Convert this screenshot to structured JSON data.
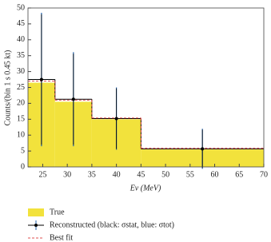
{
  "chart_data": {
    "type": "histogram",
    "xlabel": "Eν (MeV)",
    "ylabel": "Counts/(bin 1 s 0.45 kt)",
    "xlim": [
      22,
      70
    ],
    "ylim": [
      0,
      50
    ],
    "xticks": [
      25,
      30,
      35,
      40,
      45,
      50,
      55,
      60,
      65,
      70
    ],
    "yticks": [
      0,
      5,
      10,
      15,
      20,
      25,
      30,
      35,
      40,
      45,
      50
    ],
    "bins": [
      22,
      27.5,
      35,
      45,
      70
    ],
    "series": [
      {
        "name": "True",
        "color": "#f2e23c",
        "values": [
          26.5,
          20.5,
          15,
          5.5
        ]
      },
      {
        "name": "Reconstructed (black: σstat, blue: σtot)",
        "color": "#000000",
        "error_color": "#1f5fa8",
        "values": [
          27.5,
          21.3,
          15.2,
          5.7
        ],
        "stat_errors": [
          20.5,
          14.3,
          9.5,
          6
        ],
        "tot_errors": [
          21,
          14.8,
          9.8,
          6.3
        ]
      },
      {
        "name": "Best fit",
        "color": "#e05050",
        "values": [
          27,
          21,
          15.4,
          5.9
        ]
      }
    ]
  }
}
